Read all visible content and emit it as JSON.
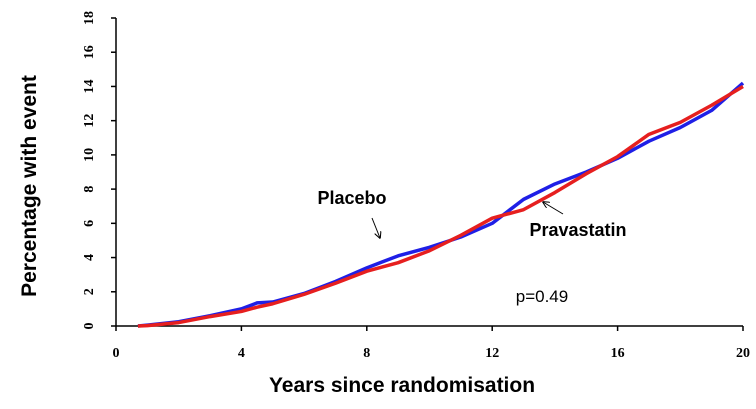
{
  "chart_data": {
    "type": "line",
    "xlabel": "Years since randomisation",
    "ylabel": "Percentage with event",
    "x": [
      0.7,
      1,
      2,
      3,
      4,
      4.5,
      5,
      6,
      7,
      8,
      9,
      10,
      11,
      12,
      13,
      14,
      15,
      16,
      17,
      18,
      19,
      20
    ],
    "series": [
      {
        "name": "Placebo",
        "color": "#1f1fe6",
        "values": [
          0,
          0.05,
          0.25,
          0.6,
          1.0,
          1.35,
          1.4,
          1.9,
          2.6,
          3.4,
          4.1,
          4.6,
          5.2,
          6.0,
          7.4,
          8.3,
          9.0,
          9.8,
          10.8,
          11.6,
          12.6,
          14.2
        ]
      },
      {
        "name": "Pravastatin",
        "color": "#e61f1f",
        "values": [
          0,
          0.02,
          0.2,
          0.55,
          0.85,
          1.1,
          1.3,
          1.85,
          2.5,
          3.2,
          3.7,
          4.4,
          5.3,
          6.3,
          6.8,
          7.8,
          8.9,
          9.9,
          11.2,
          11.9,
          12.9,
          14.0
        ]
      }
    ],
    "annotations": [
      "p=0.49"
    ],
    "xlim": [
      0,
      20
    ],
    "xticks": [
      0,
      4,
      8,
      12,
      16,
      20
    ],
    "ylim": [
      0,
      18
    ],
    "yticks": [
      0,
      2,
      4,
      6,
      8,
      10,
      12,
      14,
      16,
      18
    ]
  }
}
